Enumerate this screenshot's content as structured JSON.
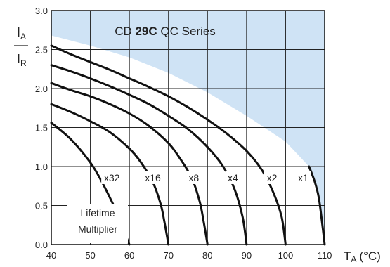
{
  "chart_data": {
    "type": "line",
    "title": "CD 29C QC Series",
    "title_parts": {
      "pre": "CD ",
      "bold": "29C",
      "post": " QC Series"
    },
    "xlabel": "TA (°C)",
    "xlabel_parts": {
      "main": "T",
      "sub": "A",
      "unit": "(°C)"
    },
    "ylabel_parts": {
      "num_main": "I",
      "num_sub": "A",
      "den_main": "I",
      "den_sub": "R"
    },
    "xlim": [
      40,
      110
    ],
    "ylim": [
      0.0,
      3.0
    ],
    "x_ticks": [
      "40",
      "50",
      "60",
      "70",
      "80",
      "90",
      "100",
      "110"
    ],
    "y_ticks": [
      "0.0",
      "0.5",
      "1.0",
      "1.5",
      "2.0",
      "2.5",
      "3.0"
    ],
    "grid": true,
    "annotation": {
      "line1": "Lifetime",
      "line2": "Multiplier"
    },
    "shaded_region": {
      "color": "#cfe3f5",
      "boundary": [
        [
          40,
          2.68
        ],
        [
          50,
          2.55
        ],
        [
          60,
          2.4
        ],
        [
          70,
          2.2
        ],
        [
          80,
          1.95
        ],
        [
          90,
          1.65
        ],
        [
          100,
          1.32
        ],
        [
          106,
          1.0
        ]
      ]
    },
    "series": [
      {
        "name": "x32",
        "x": [
          40,
          45,
          50,
          53,
          56,
          58,
          59,
          60
        ],
        "y": [
          1.56,
          1.35,
          1.05,
          0.8,
          0.5,
          0.3,
          0.13,
          0.0
        ]
      },
      {
        "name": "x16",
        "x": [
          40,
          45,
          50,
          55,
          60,
          63,
          66,
          68,
          69,
          70
        ],
        "y": [
          1.8,
          1.7,
          1.58,
          1.44,
          1.23,
          1.05,
          0.8,
          0.52,
          0.28,
          0.0
        ]
      },
      {
        "name": "x8",
        "x": [
          40,
          45,
          50,
          55,
          60,
          65,
          70,
          73,
          76,
          78,
          79,
          80
        ],
        "y": [
          2.07,
          1.98,
          1.9,
          1.8,
          1.68,
          1.52,
          1.3,
          1.1,
          0.85,
          0.55,
          0.3,
          0.0
        ]
      },
      {
        "name": "x4",
        "x": [
          40,
          45,
          50,
          55,
          60,
          65,
          70,
          75,
          80,
          84,
          87,
          89,
          90
        ],
        "y": [
          2.3,
          2.22,
          2.13,
          2.03,
          1.92,
          1.8,
          1.65,
          1.48,
          1.25,
          1.0,
          0.7,
          0.35,
          0.0
        ]
      },
      {
        "name": "x2",
        "x": [
          40,
          45,
          50,
          55,
          60,
          65,
          70,
          75,
          80,
          85,
          90,
          94,
          97,
          99,
          100
        ],
        "y": [
          2.55,
          2.44,
          2.34,
          2.24,
          2.13,
          2.02,
          1.9,
          1.76,
          1.6,
          1.42,
          1.2,
          0.95,
          0.65,
          0.35,
          0.0
        ]
      },
      {
        "name": "x1",
        "x": [
          106,
          107.5,
          108.5,
          109.3,
          110
        ],
        "y": [
          1.0,
          0.8,
          0.6,
          0.3,
          0.0
        ]
      }
    ],
    "curve_labels": [
      {
        "text": "x32",
        "x": 55.5,
        "y": 0.82
      },
      {
        "text": "x16",
        "x": 66.0,
        "y": 0.82
      },
      {
        "text": "x8",
        "x": 76.5,
        "y": 0.82
      },
      {
        "text": "x4",
        "x": 86.5,
        "y": 0.82
      },
      {
        "text": "x2",
        "x": 96.5,
        "y": 0.82
      },
      {
        "text": "x1",
        "x": 104.5,
        "y": 0.82
      }
    ],
    "line_color": "#111111"
  }
}
